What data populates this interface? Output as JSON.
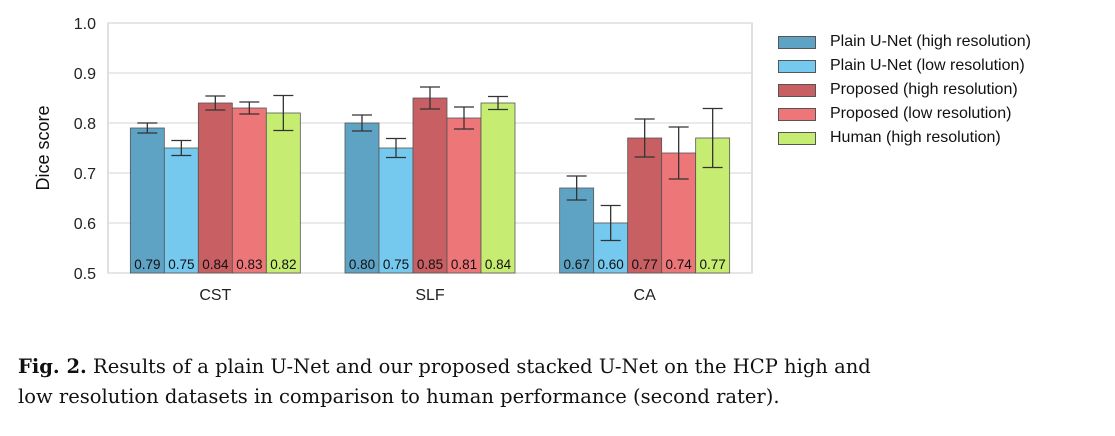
{
  "chart_data": {
    "type": "bar",
    "title": "",
    "xlabel": "",
    "ylabel": "Dice score",
    "ylim": [
      0.5,
      1.0
    ],
    "yticks": [
      "0.5",
      "0.6",
      "0.7",
      "0.8",
      "0.9",
      "1.0"
    ],
    "grid": true,
    "legend_position": "right",
    "categories": [
      "CST",
      "SLF",
      "CA"
    ],
    "series": [
      {
        "name": "Plain U-Net (high resolution)",
        "color": "#5ea3c4",
        "values": [
          0.79,
          0.8,
          0.67
        ],
        "errors": [
          0.01,
          0.016,
          0.024
        ],
        "labels": [
          "0.79",
          "0.80",
          "0.67"
        ]
      },
      {
        "name": "Plain U-Net (low resolution)",
        "color": "#75c8ee",
        "values": [
          0.75,
          0.75,
          0.6
        ],
        "errors": [
          0.015,
          0.019,
          0.035
        ],
        "labels": [
          "0.75",
          "0.75",
          "0.60"
        ]
      },
      {
        "name": "Proposed (high resolution)",
        "color": "#c75f63",
        "values": [
          0.84,
          0.85,
          0.77
        ],
        "errors": [
          0.014,
          0.022,
          0.038
        ],
        "labels": [
          "0.84",
          "0.85",
          "0.77"
        ]
      },
      {
        "name": "Proposed (low resolution)",
        "color": "#ec7678",
        "values": [
          0.83,
          0.81,
          0.74
        ],
        "errors": [
          0.012,
          0.022,
          0.052
        ],
        "labels": [
          "0.83",
          "0.81",
          "0.74"
        ]
      },
      {
        "name": "Human (high resolution)",
        "color": "#c6ec72",
        "values": [
          0.82,
          0.84,
          0.77
        ],
        "errors": [
          0.035,
          0.013,
          0.059
        ],
        "labels": [
          "0.82",
          "0.84",
          "0.77"
        ]
      }
    ]
  },
  "caption": {
    "fig_label": "Fig. 2.",
    "line1": "Results of a plain U-Net and our proposed stacked U-Net on the HCP high and",
    "line2": "low resolution datasets in comparison to human performance (second rater)."
  }
}
